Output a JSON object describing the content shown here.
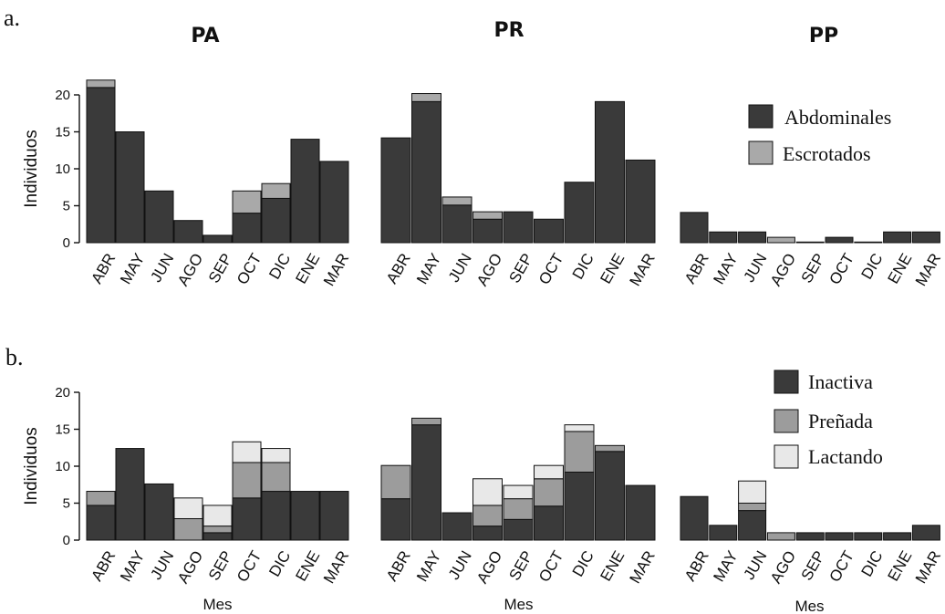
{
  "panels": [
    {
      "letter": "a."
    },
    {
      "letter": "b."
    }
  ],
  "columns": [
    {
      "title": "PA"
    },
    {
      "title": "PR"
    },
    {
      "title": "PP"
    }
  ],
  "legends": [
    {
      "items": [
        {
          "name": "Abdominales",
          "color": "#3a3a3a"
        },
        {
          "name": "Escrotados",
          "color": "#a9a9a9"
        }
      ]
    },
    {
      "items": [
        {
          "name": "Inactiva",
          "color": "#3a3a3a"
        },
        {
          "name": "Preñada",
          "color": "#9c9c9c"
        },
        {
          "name": "Lactando",
          "color": "#e8e8e8"
        }
      ]
    }
  ],
  "chart_data": [
    {
      "type": "bar",
      "stacked": true,
      "title": "PA",
      "ylabel": "Individuos",
      "xlabel": "",
      "ylim": [
        0,
        22
      ],
      "yticks": [
        0,
        5,
        10,
        15,
        20
      ],
      "categories": [
        "ABR",
        "MAY",
        "JUN",
        "AGO",
        "SEP",
        "OCT",
        "DIC",
        "ENE",
        "MAR"
      ],
      "series": [
        {
          "name": "Abdominales",
          "color": "#3a3a3a",
          "values": [
            21,
            15,
            7,
            3,
            1,
            4,
            6,
            14,
            11
          ]
        },
        {
          "name": "Escrotados",
          "color": "#a9a9a9",
          "values": [
            1,
            0,
            0,
            0,
            0,
            3,
            2,
            0,
            0
          ]
        }
      ]
    },
    {
      "type": "bar",
      "stacked": true,
      "title": "PR",
      "ylabel": "",
      "xlabel": "",
      "ylim": [
        0,
        22
      ],
      "yticks": [],
      "categories": [
        "ABR",
        "MAY",
        "JUN",
        "AGO",
        "SEP",
        "OCT",
        "DIC",
        "ENE",
        "MAR"
      ],
      "series": [
        {
          "name": "Abdominales",
          "color": "#3a3a3a",
          "values": [
            15.6,
            21,
            5.6,
            3.5,
            4.6,
            3.5,
            9,
            21,
            12.3
          ]
        },
        {
          "name": "Escrotados",
          "color": "#a9a9a9",
          "values": [
            0,
            1.2,
            1.2,
            1.1,
            0,
            0,
            0,
            0,
            0
          ]
        }
      ]
    },
    {
      "type": "bar",
      "stacked": true,
      "title": "PP",
      "ylabel": "",
      "xlabel": "",
      "ylim": [
        0,
        22
      ],
      "yticks": [],
      "categories": [
        "ABR",
        "MAY",
        "JUN",
        "AGO",
        "SEP",
        "OCT",
        "DIC",
        "ENE",
        "MAR"
      ],
      "series": [
        {
          "name": "Abdominales",
          "color": "#3a3a3a",
          "values": [
            4.5,
            1.6,
            1.6,
            0,
            0,
            0.8,
            0,
            1.6,
            1.6
          ]
        },
        {
          "name": "Escrotados",
          "color": "#a9a9a9",
          "values": [
            0,
            0,
            0,
            0.8,
            0.1,
            0,
            0.1,
            0,
            0
          ]
        }
      ]
    },
    {
      "type": "bar",
      "stacked": true,
      "title": "",
      "ylabel": "Individuos",
      "xlabel": "Mes",
      "ylim": [
        0,
        20
      ],
      "yticks": [
        0,
        5,
        10,
        15,
        20
      ],
      "categories": [
        "ABR",
        "MAY",
        "JUN",
        "AGO",
        "SEP",
        "OCT",
        "DIC",
        "ENE",
        "MAR"
      ],
      "series": [
        {
          "name": "Inactiva",
          "color": "#3a3a3a",
          "values": [
            4.7,
            12.4,
            7.6,
            0,
            1,
            5.7,
            6.6,
            6.6,
            6.6
          ]
        },
        {
          "name": "Preñada",
          "color": "#9c9c9c",
          "values": [
            1.9,
            0,
            0,
            2.9,
            0.9,
            4.8,
            3.9,
            0,
            0
          ]
        },
        {
          "name": "Lactando",
          "color": "#e8e8e8",
          "values": [
            0,
            0,
            0,
            2.8,
            2.8,
            2.8,
            1.9,
            0,
            0
          ]
        }
      ]
    },
    {
      "type": "bar",
      "stacked": true,
      "title": "",
      "ylabel": "",
      "xlabel": "Mes",
      "ylim": [
        0,
        20
      ],
      "yticks": [],
      "categories": [
        "ABR",
        "MAY",
        "JUN",
        "AGO",
        "SEP",
        "OCT",
        "DIC",
        "ENE",
        "MAR"
      ],
      "series": [
        {
          "name": "Inactiva",
          "color": "#3a3a3a",
          "values": [
            5.6,
            15.6,
            3.7,
            1.9,
            2.8,
            4.6,
            9.2,
            12,
            7.4
          ]
        },
        {
          "name": "Preñada",
          "color": "#9c9c9c",
          "values": [
            4.5,
            0.9,
            0,
            2.8,
            2.8,
            3.7,
            5.5,
            0.8,
            0
          ]
        },
        {
          "name": "Lactando",
          "color": "#e8e8e8",
          "values": [
            0,
            0,
            0,
            3.6,
            1.8,
            1.8,
            0.9,
            0,
            0
          ]
        }
      ]
    },
    {
      "type": "bar",
      "stacked": true,
      "title": "",
      "ylabel": "",
      "xlabel": "Mes",
      "ylim": [
        0,
        20
      ],
      "yticks": [],
      "categories": [
        "ABR",
        "MAY",
        "JUN",
        "AGO",
        "SEP",
        "OCT",
        "DIC",
        "ENE",
        "MAR"
      ],
      "series": [
        {
          "name": "Inactiva",
          "color": "#3a3a3a",
          "values": [
            5.9,
            2,
            4,
            0,
            1,
            1,
            1,
            1,
            2
          ]
        },
        {
          "name": "Preñada",
          "color": "#9c9c9c",
          "values": [
            0,
            0,
            1,
            1,
            0,
            0,
            0,
            0,
            0
          ]
        },
        {
          "name": "Lactando",
          "color": "#e8e8e8",
          "values": [
            0,
            0,
            3,
            0,
            0,
            0,
            0,
            0,
            0
          ]
        }
      ]
    }
  ]
}
